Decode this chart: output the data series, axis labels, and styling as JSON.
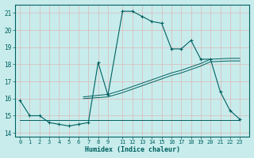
{
  "xlabel": "Humidex (Indice chaleur)",
  "bg_color": "#c8ecec",
  "grid_color_h": "#e8c8c8",
  "grid_color_v": "#e8c8c8",
  "line_color": "#006060",
  "xlim": [
    -0.5,
    23.5
  ],
  "ylim": [
    13.8,
    21.5
  ],
  "yticks": [
    14,
    15,
    16,
    17,
    18,
    19,
    20,
    21
  ],
  "xtick_positions": [
    0,
    1,
    2,
    3,
    4,
    5,
    6,
    7,
    8,
    9,
    10.5,
    11.5,
    12.5,
    13.5,
    14.5,
    15.5,
    16.5,
    17.5,
    18.5,
    19.5,
    20.5,
    21.5,
    22.5
  ],
  "xtick_labels": [
    "0",
    "1",
    "2",
    "3",
    "4",
    "5",
    "6",
    "7",
    "8",
    "9",
    "11",
    "12",
    "13",
    "14",
    "15",
    "16",
    "17",
    "18",
    "19",
    "20",
    "21",
    "22",
    "23"
  ],
  "series1_x": [
    0,
    1,
    2,
    3,
    4,
    5,
    6,
    7,
    8,
    9,
    10.5,
    11.5,
    12.5,
    13.5,
    14.5,
    15.5,
    16.5,
    17.5,
    18.5,
    19.5,
    20.5,
    21.5,
    22.5
  ],
  "series1_y": [
    15.9,
    15.0,
    15.0,
    14.6,
    14.5,
    14.4,
    14.5,
    14.6,
    18.1,
    16.2,
    21.1,
    21.1,
    20.8,
    20.5,
    20.4,
    18.9,
    18.9,
    19.4,
    18.3,
    18.3,
    16.4,
    15.3,
    14.8
  ],
  "series2_x": [
    0,
    22.5
  ],
  "series2_y": [
    14.75,
    14.75
  ],
  "series3_x": [
    6.5,
    9,
    10.5,
    11.5,
    12.5,
    13.5,
    14.5,
    15.5,
    16.5,
    17.5,
    18.5,
    19.5,
    21.5,
    22.5
  ],
  "series3_y": [
    16.1,
    16.25,
    16.5,
    16.7,
    16.9,
    17.1,
    17.3,
    17.5,
    17.65,
    17.85,
    18.05,
    18.3,
    18.35,
    18.35
  ],
  "series3b_x": [
    6.5,
    9,
    10.5,
    11.5,
    12.5,
    13.5,
    14.5,
    15.5,
    16.5,
    17.5,
    18.5,
    19.5,
    21.5,
    22.5
  ],
  "series3b_y": [
    16.0,
    16.1,
    16.35,
    16.55,
    16.75,
    16.95,
    17.15,
    17.35,
    17.5,
    17.7,
    17.9,
    18.15,
    18.2,
    18.2
  ]
}
